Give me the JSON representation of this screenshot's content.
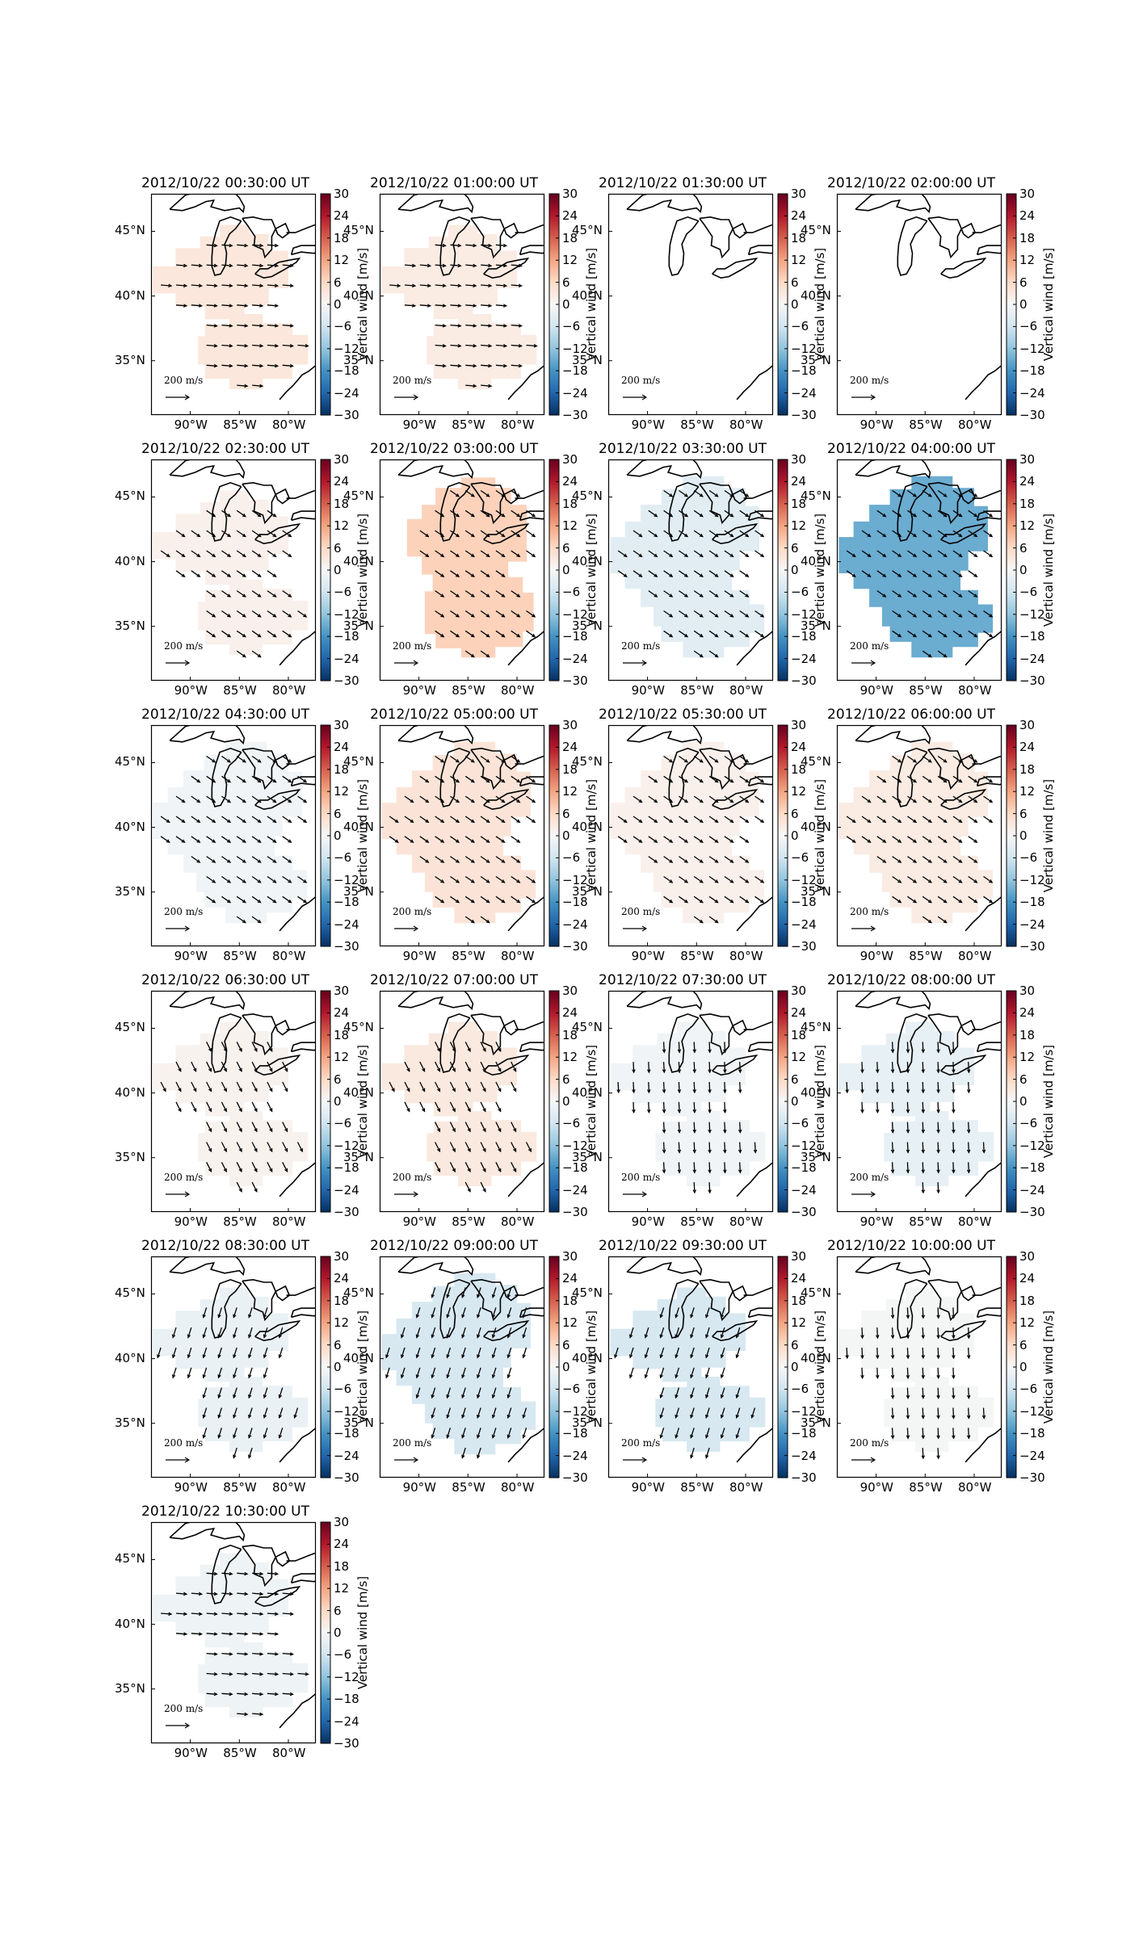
{
  "figure": {
    "colorbar_label": "Vertical wind [m/s]",
    "colorbar_ticks": [
      "30",
      "24",
      "18",
      "12",
      "6",
      "0",
      "−6",
      "−12",
      "−18",
      "−24",
      "−30"
    ],
    "lat_ticks": [
      "45°N",
      "40°N",
      "35°N"
    ],
    "lon_ticks": [
      "90°W",
      "85°W",
      "80°W"
    ],
    "scale_arrow_label": "200 m/s",
    "colormap": "RdBu_r",
    "colormap_stops": [
      "#053061",
      "#2166ac",
      "#4393c3",
      "#92c5de",
      "#d1e5f0",
      "#f7f7f7",
      "#fddbc7",
      "#f4a582",
      "#d6604d",
      "#b2182b",
      "#67001f"
    ],
    "colorbar_range": [
      -30,
      30
    ]
  },
  "chart_data": [
    {
      "type": "heatmap",
      "title": "2012/10/22 00:30:00 UT",
      "vertical_wind": 3.5,
      "region": "two",
      "arrows": "east"
    },
    {
      "type": "heatmap",
      "title": "2012/10/22 01:00:00 UT",
      "vertical_wind": 2.5,
      "region": "two",
      "arrows": "east"
    },
    {
      "type": "heatmap",
      "title": "2012/10/22 01:30:00 UT",
      "vertical_wind": null,
      "region": "none",
      "arrows": "none"
    },
    {
      "type": "heatmap",
      "title": "2012/10/22 02:00:00 UT",
      "vertical_wind": null,
      "region": "none",
      "arrows": "none"
    },
    {
      "type": "heatmap",
      "title": "2012/10/22 02:30:00 UT",
      "vertical_wind": 1.5,
      "region": "two",
      "arrows": "southeast"
    },
    {
      "type": "heatmap",
      "title": "2012/10/22 03:00:00 UT",
      "vertical_wind": 7,
      "region": "merged",
      "arrows": "southeast"
    },
    {
      "type": "heatmap",
      "title": "2012/10/22 03:30:00 UT",
      "vertical_wind": -3.5,
      "region": "large",
      "arrows": "southeast"
    },
    {
      "type": "heatmap",
      "title": "2012/10/22 04:00:00 UT",
      "vertical_wind": -15,
      "region": "large",
      "arrows": "southeast"
    },
    {
      "type": "heatmap",
      "title": "2012/10/22 04:30:00 UT",
      "vertical_wind": -1,
      "region": "large",
      "arrows": "southeast"
    },
    {
      "type": "heatmap",
      "title": "2012/10/22 05:00:00 UT",
      "vertical_wind": 4,
      "region": "large",
      "arrows": "southeast"
    },
    {
      "type": "heatmap",
      "title": "2012/10/22 05:30:00 UT",
      "vertical_wind": 1.5,
      "region": "large",
      "arrows": "southeast"
    },
    {
      "type": "heatmap",
      "title": "2012/10/22 06:00:00 UT",
      "vertical_wind": 2.5,
      "region": "large",
      "arrows": "southeast"
    },
    {
      "type": "heatmap",
      "title": "2012/10/22 06:30:00 UT",
      "vertical_wind": 1,
      "region": "two",
      "arrows": "south-southeast"
    },
    {
      "type": "heatmap",
      "title": "2012/10/22 07:00:00 UT",
      "vertical_wind": 3,
      "region": "two",
      "arrows": "south-southeast"
    },
    {
      "type": "heatmap",
      "title": "2012/10/22 07:30:00 UT",
      "vertical_wind": -1,
      "region": "two",
      "arrows": "south"
    },
    {
      "type": "heatmap",
      "title": "2012/10/22 08:00:00 UT",
      "vertical_wind": -2.5,
      "region": "two",
      "arrows": "south"
    },
    {
      "type": "heatmap",
      "title": "2012/10/22 08:30:00 UT",
      "vertical_wind": -2,
      "region": "two",
      "arrows": "south-southwest"
    },
    {
      "type": "heatmap",
      "title": "2012/10/22 09:00:00 UT",
      "vertical_wind": -5,
      "region": "large",
      "arrows": "south-southwest"
    },
    {
      "type": "heatmap",
      "title": "2012/10/22 09:30:00 UT",
      "vertical_wind": -5,
      "region": "two",
      "arrows": "south-southwest"
    },
    {
      "type": "heatmap",
      "title": "2012/10/22 10:00:00 UT",
      "vertical_wind": -0.5,
      "region": "two",
      "arrows": "south"
    },
    {
      "type": "heatmap",
      "title": "2012/10/22 10:30:00 UT",
      "vertical_wind": -1.5,
      "region": "two",
      "arrows": "east"
    }
  ]
}
